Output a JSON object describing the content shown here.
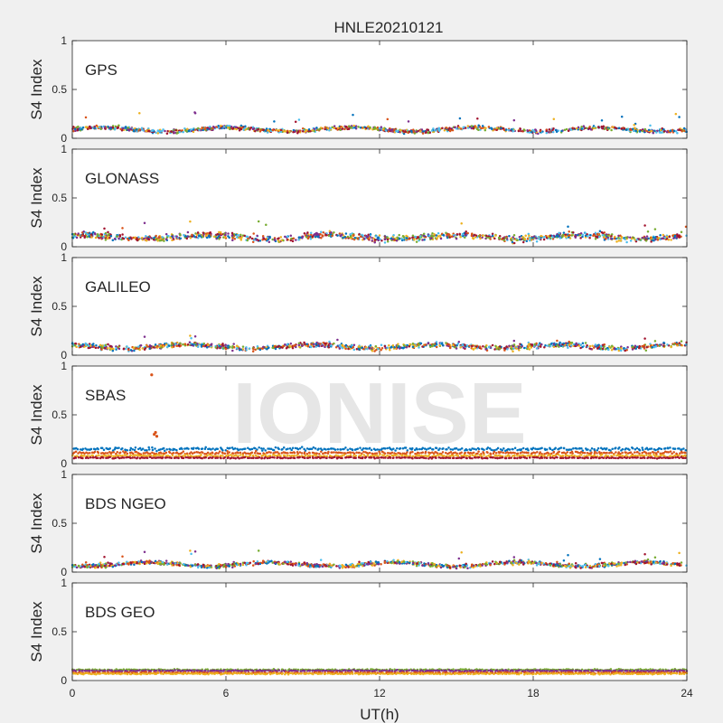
{
  "figure": {
    "title": "HNLE20210121",
    "xlabel": "UT(h)",
    "watermark": "IONISE",
    "background": "#f0f0f0",
    "axes_background": "#ffffff",
    "watermark_color": "#e6e6e6"
  },
  "chart_data": [
    {
      "type": "scatter",
      "panel_label": "GPS",
      "ylabel": "S4 Index",
      "xlim": [
        0,
        24
      ],
      "ylim": [
        0,
        1
      ],
      "x_ticks": [],
      "y_ticks": [
        0,
        0.5,
        1
      ],
      "grid": false,
      "series_profile": {
        "baseline": 0.09,
        "spread": 0.03,
        "peak": 0.27
      },
      "colors": [
        "#0072bd",
        "#d95319",
        "#edb120",
        "#7e2f8e",
        "#77ac30",
        "#4dbeee",
        "#a2142f"
      ]
    },
    {
      "type": "scatter",
      "panel_label": "GLONASS",
      "ylabel": "S4 Index",
      "xlim": [
        0,
        24
      ],
      "ylim": [
        0,
        1
      ],
      "x_ticks": [],
      "y_ticks": [
        0,
        0.5,
        1
      ],
      "grid": false,
      "series_profile": {
        "baseline": 0.1,
        "spread": 0.05,
        "peak": 0.26
      },
      "colors": [
        "#0072bd",
        "#d95319",
        "#edb120",
        "#7e2f8e",
        "#77ac30",
        "#4dbeee",
        "#a2142f"
      ]
    },
    {
      "type": "scatter",
      "panel_label": "GALILEO",
      "ylabel": "S4 Index",
      "xlim": [
        0,
        24
      ],
      "ylim": [
        0,
        1
      ],
      "x_ticks": [],
      "y_ticks": [
        0,
        0.5,
        1
      ],
      "grid": false,
      "series_profile": {
        "baseline": 0.09,
        "spread": 0.04,
        "peak": 0.2
      },
      "colors": [
        "#0072bd",
        "#d95319",
        "#edb120",
        "#7e2f8e",
        "#77ac30",
        "#4dbeee",
        "#a2142f"
      ]
    },
    {
      "type": "scatter",
      "panel_label": "SBAS",
      "ylabel": "S4 Index",
      "xlim": [
        0,
        24
      ],
      "ylim": [
        0,
        1
      ],
      "x_ticks": [],
      "y_ticks": [
        0,
        0.5,
        1
      ],
      "grid": false,
      "tracks": [
        {
          "color": "#0072bd",
          "baseline": 0.15,
          "spread": 0.025
        },
        {
          "color": "#d95319",
          "baseline": 0.11,
          "spread": 0.02
        },
        {
          "color": "#edb120",
          "baseline": 0.08,
          "spread": 0.015
        },
        {
          "color": "#a2142f",
          "baseline": 0.06,
          "spread": 0.01
        }
      ],
      "outliers": [
        {
          "x": 3.1,
          "y": 0.91,
          "color": "#d95319"
        },
        {
          "x": 3.2,
          "y": 0.3,
          "color": "#d95319"
        },
        {
          "x": 3.25,
          "y": 0.32,
          "color": "#d95319"
        },
        {
          "x": 3.3,
          "y": 0.28,
          "color": "#d95319"
        }
      ]
    },
    {
      "type": "scatter",
      "panel_label": "BDS NGEO",
      "ylabel": "S4 Index",
      "xlim": [
        0,
        24
      ],
      "ylim": [
        0,
        1
      ],
      "x_ticks": [],
      "y_ticks": [
        0,
        0.5,
        1
      ],
      "grid": false,
      "series_profile": {
        "baseline": 0.08,
        "spread": 0.03,
        "peak": 0.22
      },
      "colors": [
        "#0072bd",
        "#d95319",
        "#edb120",
        "#7e2f8e",
        "#77ac30",
        "#4dbeee",
        "#a2142f"
      ]
    },
    {
      "type": "scatter",
      "panel_label": "BDS GEO",
      "ylabel": "S4 Index",
      "xlim": [
        0,
        24
      ],
      "ylim": [
        0,
        1
      ],
      "x_ticks": [
        0,
        6,
        12,
        18,
        24
      ],
      "y_ticks": [
        0,
        0.5,
        1
      ],
      "grid": false,
      "tracks": [
        {
          "color": "#77ac30",
          "baseline": 0.11,
          "spread": 0.01
        },
        {
          "color": "#7e2f8e",
          "baseline": 0.1,
          "spread": 0.01
        },
        {
          "color": "#d95319",
          "baseline": 0.08,
          "spread": 0.01
        },
        {
          "color": "#edb120",
          "baseline": 0.07,
          "spread": 0.01
        }
      ]
    }
  ]
}
